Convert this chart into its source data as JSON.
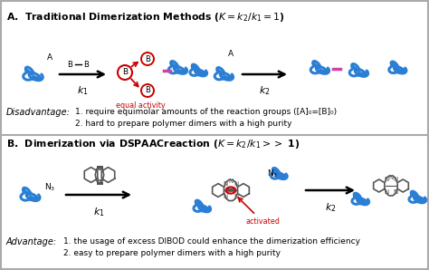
{
  "polymer_color": "#2a7fd4",
  "linker_color": "#cc44aa",
  "red_color": "#cc0000",
  "black": "#000000",
  "bg_color": "#ffffff",
  "border_color": "#888888",
  "struct_color": "#333333",
  "fig_width": 4.74,
  "fig_height": 2.98,
  "dpi": 100,
  "disadvantage_1": "1. require equimolar amounts of the reaction groups ([A]₀=[B]₀)",
  "disadvantage_2": "2. hard to prepare polymer dimers with a high purity",
  "advantage_1": "1. the usage of excess DIBOD could enhance the dimerization efficiency",
  "advantage_2": "2. easy to prepare polymer dimers with a high purity"
}
